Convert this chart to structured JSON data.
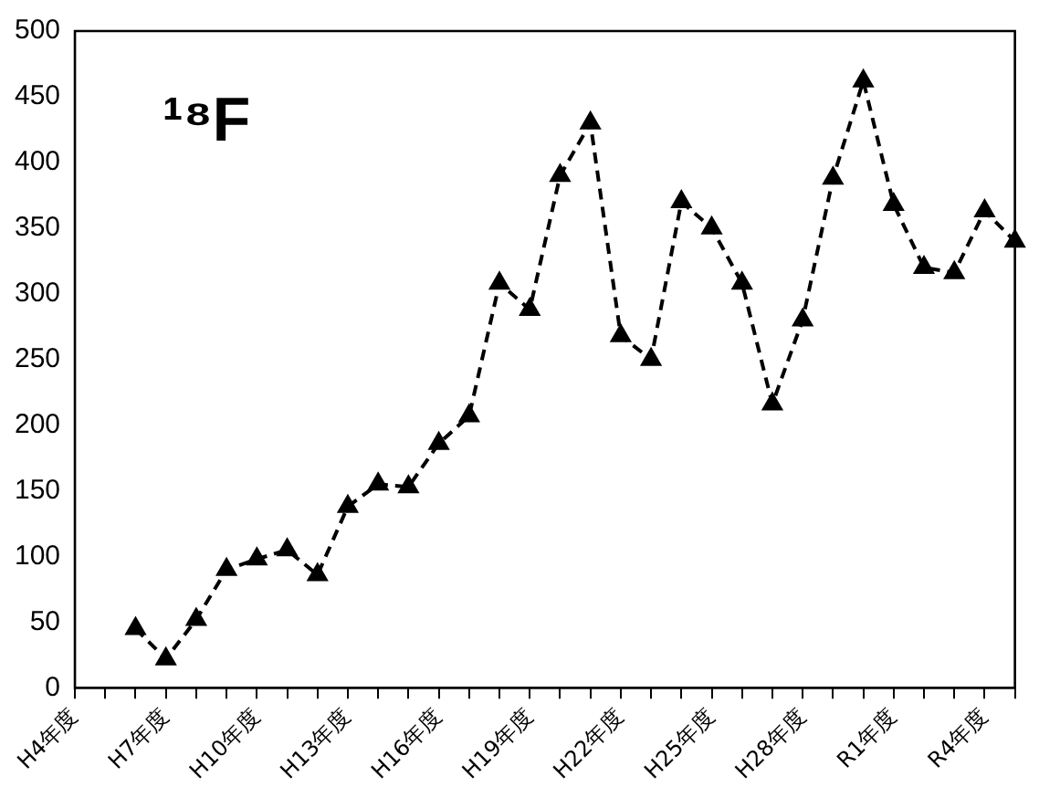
{
  "chart_data": {
    "type": "line",
    "title": "¹⁸F",
    "categories": [
      "H4年度",
      null,
      null,
      "H7年度",
      null,
      null,
      "H10年度",
      null,
      null,
      "H13年度",
      null,
      null,
      "H16年度",
      null,
      null,
      "H19年度",
      null,
      null,
      "H22年度",
      null,
      null,
      "H25年度",
      null,
      null,
      "H28年度",
      null,
      null,
      "R1年度",
      null,
      null,
      "R4年度",
      null
    ],
    "series": [
      {
        "color": "#000000",
        "values": [
          null,
          null,
          45,
          22,
          52,
          90,
          98,
          105,
          86,
          138,
          155,
          153,
          186,
          207,
          308,
          288,
          390,
          430,
          268,
          250,
          370,
          350,
          308,
          216,
          280,
          388,
          462,
          368,
          320,
          316,
          363,
          340
        ]
      }
    ],
    "ylim": [
      0,
      500
    ],
    "yticks": [
      0,
      50,
      100,
      150,
      200,
      250,
      300,
      350,
      400,
      450,
      500
    ],
    "grid": false,
    "legend": false,
    "marker": "triangle",
    "line_style": "dashed"
  }
}
